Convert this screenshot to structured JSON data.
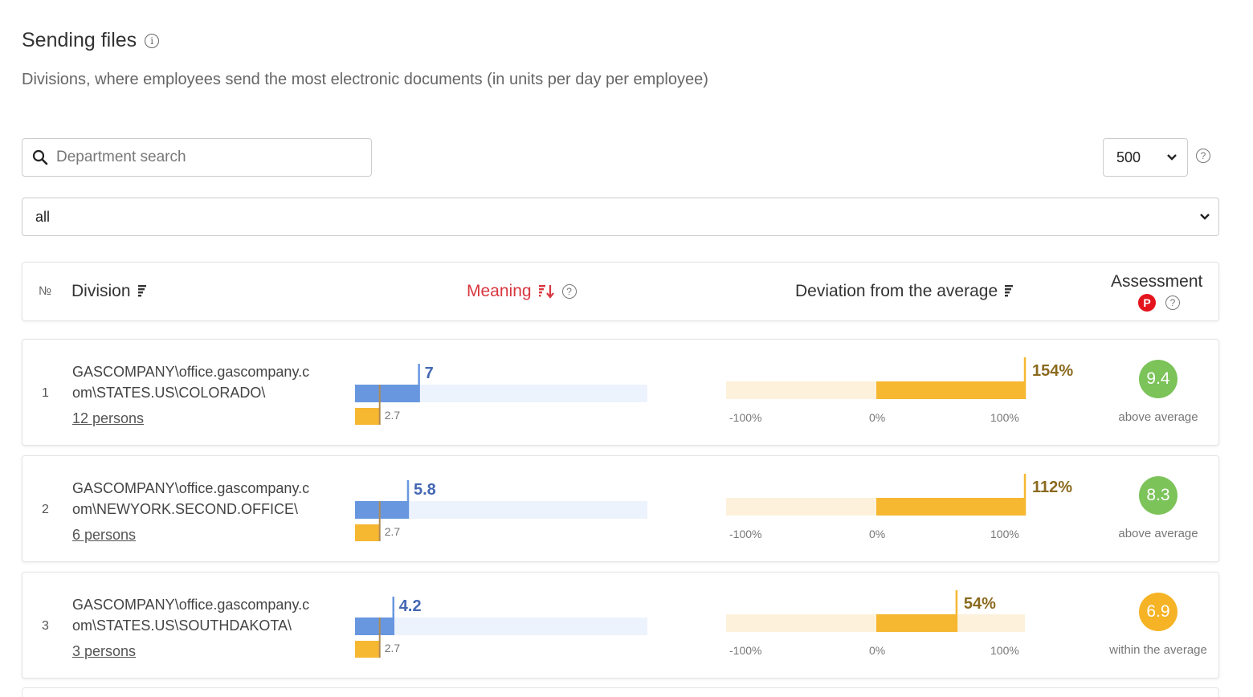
{
  "page": {
    "title": "Sending files",
    "subtitle": "Divisions, where employees send the most electronic documents (in units per day per employee)"
  },
  "controls": {
    "search_placeholder": "Department search",
    "page_size": "500",
    "filter_value": "all"
  },
  "table": {
    "headers": {
      "number": "№",
      "division": "Division",
      "meaning": "Meaning",
      "deviation": "Deviation from the average",
      "assessment": "Assessment",
      "assessment_badge": "P"
    },
    "axis_labels": [
      "-100%",
      "0%",
      "100%"
    ],
    "rows": [
      {
        "number": "1",
        "division_line1": "GASCOMPANY\\office.gascompany.c",
        "division_line2": "om\\STATES.US\\COLORADO\\",
        "persons": "12 persons",
        "value": 7,
        "value_label": "7",
        "average": 2.7,
        "average_label": "2.7",
        "deviation": 154,
        "deviation_label": "154%",
        "score": "9.4",
        "score_color": "#7cc35a",
        "assessment": "above average"
      },
      {
        "number": "2",
        "division_line1": "GASCOMPANY\\office.gascompany.c",
        "division_line2": "om\\NEWYORK.SECOND.OFFICE\\",
        "persons": "6 persons",
        "value": 5.8,
        "value_label": "5.8",
        "average": 2.7,
        "average_label": "2.7",
        "deviation": 112,
        "deviation_label": "112%",
        "score": "8.3",
        "score_color": "#7cc35a",
        "assessment": "above average"
      },
      {
        "number": "3",
        "division_line1": "GASCOMPANY\\office.gascompany.c",
        "division_line2": "om\\STATES.US\\SOUTHDAKOTA\\",
        "persons": "3 persons",
        "value": 4.2,
        "value_label": "4.2",
        "average": 2.7,
        "average_label": "2.7",
        "deviation": 54,
        "deviation_label": "54%",
        "score": "6.9",
        "score_color": "#f5b325",
        "assessment": "within the average"
      }
    ]
  },
  "colors": {
    "value_bar": "#6897e0",
    "value_track": "#edf3fd",
    "value_label": "#4467b3",
    "average_bar": "#f6b731",
    "deviation_bar": "#f6b731",
    "deviation_track": "#fdf1dc",
    "deviation_label": "#8a6a1e",
    "sort_active": "#d9363e"
  }
}
